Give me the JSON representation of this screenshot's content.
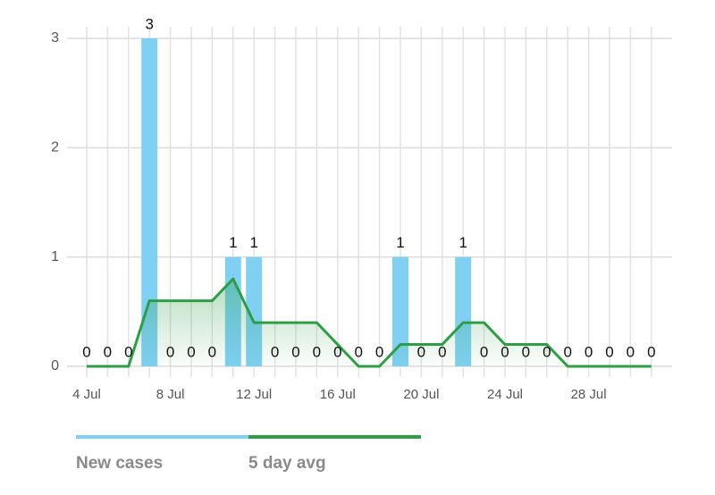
{
  "chart_data": {
    "type": "bar-line",
    "categories": [
      "4 Jul",
      null,
      null,
      null,
      "8 Jul",
      null,
      null,
      null,
      "12 Jul",
      null,
      null,
      null,
      "16 Jul",
      null,
      null,
      null,
      "20 Jul",
      null,
      null,
      null,
      "24 Jul",
      null,
      null,
      null,
      "28 Jul",
      null,
      null,
      null
    ],
    "series": [
      {
        "name": "New cases",
        "type": "bar",
        "color": "#7fd0f3",
        "values": [
          0,
          0,
          0,
          3,
          0,
          0,
          0,
          1,
          1,
          0,
          0,
          0,
          0,
          0,
          0,
          1,
          0,
          0,
          1,
          0,
          0,
          0,
          0,
          0,
          0,
          0,
          0,
          0
        ]
      },
      {
        "name": "5 day avg",
        "type": "line",
        "color": "#2e9e46",
        "values": [
          0,
          0,
          0,
          0.6,
          0.6,
          0.6,
          0.6,
          0.8,
          0.4,
          0.4,
          0.4,
          0.4,
          0.2,
          0,
          0,
          0.2,
          0.2,
          0.2,
          0.4,
          0.4,
          0.2,
          0.2,
          0.2,
          0,
          0,
          0,
          0,
          0
        ]
      }
    ],
    "ylim": [
      0,
      3
    ],
    "yticks": [
      0,
      1,
      2,
      3
    ],
    "grid": true
  }
}
